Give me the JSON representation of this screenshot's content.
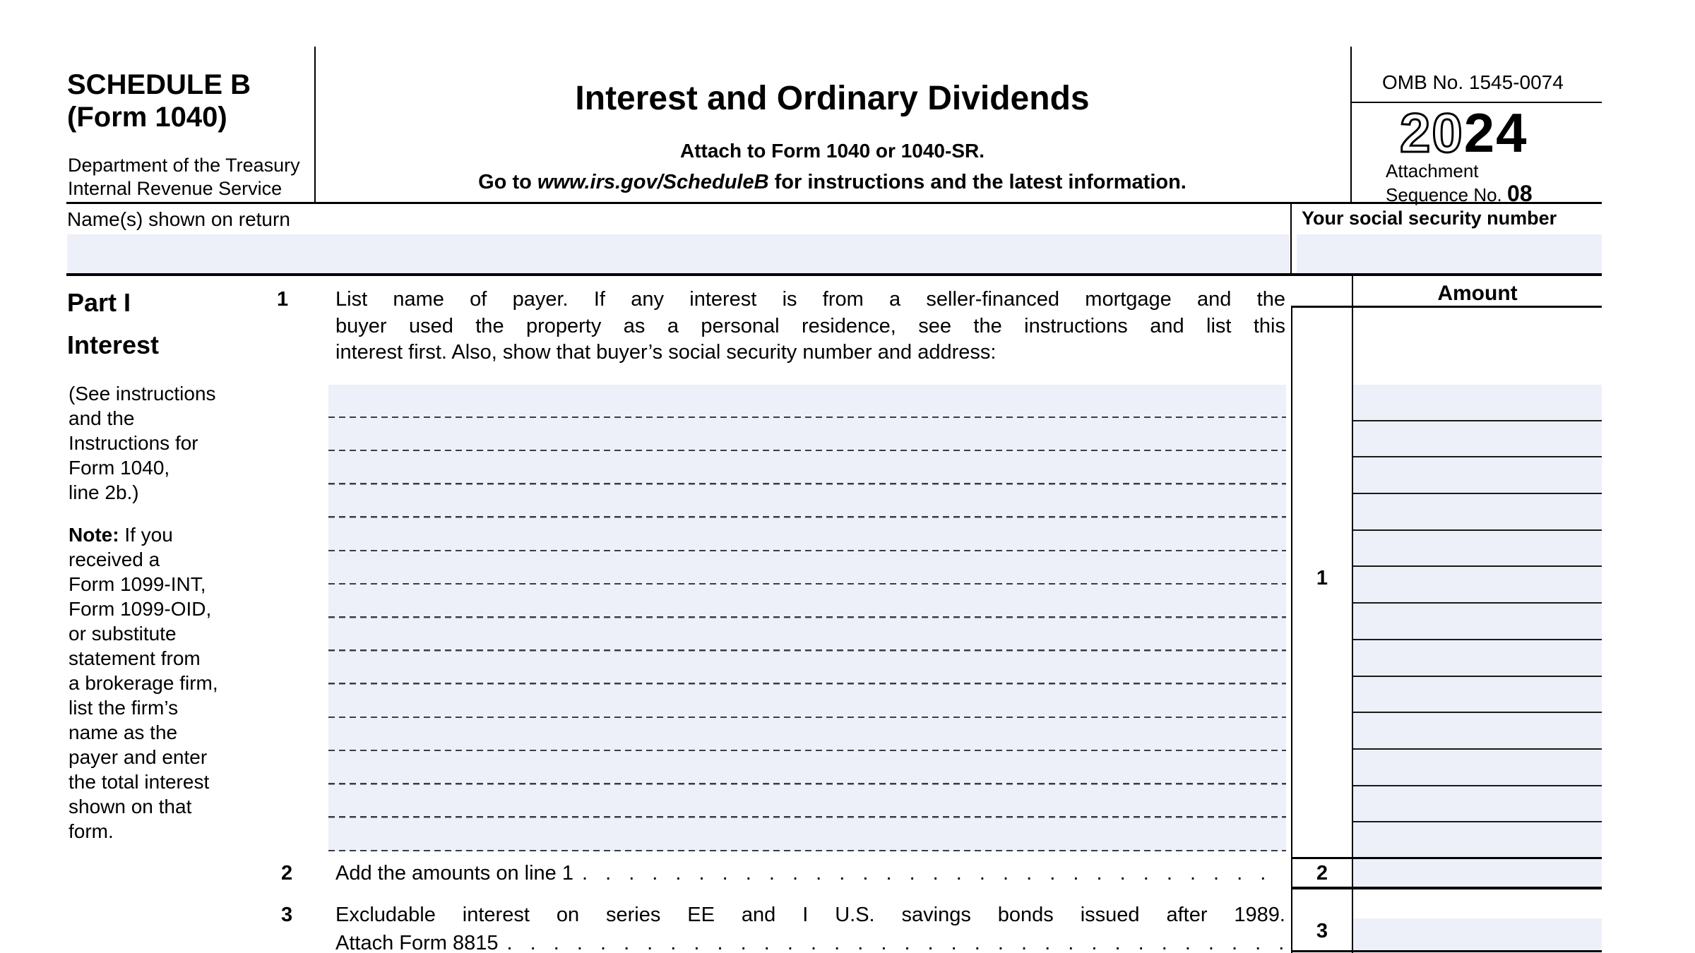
{
  "header": {
    "schedule_label": "SCHEDULE B",
    "form_label": "(Form 1040)",
    "dept_line1": "Department of the Treasury",
    "dept_line2": "Internal Revenue Service",
    "title": "Interest and Ordinary Dividends",
    "attach_line": "Attach to Form 1040 or 1040-SR.",
    "goto_prefix": "Go to ",
    "goto_url": "www.irs.gov/ScheduleB",
    "goto_suffix": " for instructions and the latest information.",
    "omb": "OMB No. 1545-0074",
    "year_outline": "20",
    "year_solid": "24",
    "attachment_label": "Attachment",
    "sequence_label": "Sequence No. ",
    "sequence_no": "08"
  },
  "identity": {
    "name_label": "Name(s) shown on return",
    "name_value": "",
    "ssn_label": "Your social security number",
    "ssn_value": ""
  },
  "part1": {
    "part_label": "Part I",
    "part_title": "Interest",
    "see_instructions_lines": [
      "(See instructions",
      "and the",
      "Instructions for",
      "Form 1040,",
      "line 2b.)"
    ],
    "note_prefix": "Note:",
    "note_lines": [
      "If you",
      "received a",
      "Form 1099-INT,",
      "Form 1099-OID,",
      "or substitute",
      "statement from",
      "a brokerage firm,",
      "list the firm’s",
      "name as the",
      "payer and enter",
      "the total interest",
      "shown on that",
      "form."
    ],
    "amount_header": "Amount",
    "line1": {
      "number": "1",
      "text_lines": [
        "List name of payer. If any interest is from a seller-financed mortgage and the",
        "buyer used the property as a personal residence, see the instructions and list this",
        "interest first. Also, show that buyer’s social security number and address:"
      ],
      "payer_row_count": 14,
      "amount_row_count": 13,
      "amount_values": []
    },
    "line2": {
      "number": "2",
      "text": "Add the amounts on line 1",
      "amount_value": ""
    },
    "line3": {
      "number": "3",
      "text_line1": "Excludable interest on series EE and I U.S. savings bonds issued after 1989.",
      "text_line2": "Attach Form 8815",
      "amount_value": ""
    }
  },
  "colors": {
    "field_fill": "#edf0f8",
    "line_color": "#000000"
  }
}
